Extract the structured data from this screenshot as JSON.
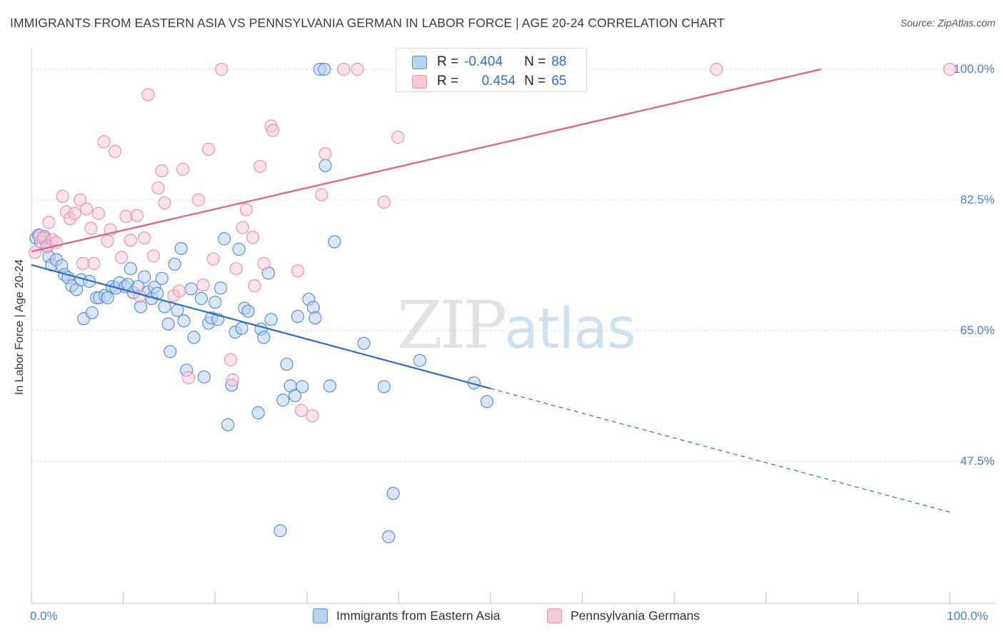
{
  "title": "IMMIGRANTS FROM EASTERN ASIA VS PENNSYLVANIA GERMAN IN LABOR FORCE | AGE 20-24 CORRELATION CHART",
  "source": "Source: ZipAtlas.com",
  "watermark": {
    "zip": "ZIP",
    "atlas": "atlas"
  },
  "legend": {
    "r_label": "R =",
    "n_label": "N =",
    "rows": [
      {
        "r": "-0.404",
        "n": "88"
      },
      {
        "r": "0.454",
        "n": "65"
      }
    ]
  },
  "bottom_legend": [
    "Immigrants from Eastern Asia",
    "Pennsylvania Germans"
  ],
  "colors": {
    "blue": "#2f6ccf",
    "blue_fill": "#b9d2f2",
    "blue_stroke": "#5b8fd8",
    "pink": "#e0648c",
    "pink_fill": "#f8c7d6",
    "pink_stroke": "#ea93b0",
    "grid": "#d7d7d7",
    "tick_text": "#4a7fd0"
  },
  "chart_data": {
    "type": "scatter",
    "title": "IMMIGRANTS FROM EASTERN ASIA VS PENNSYLVANIA GERMAN IN LABOR FORCE | AGE 20-24 CORRELATION CHART",
    "xlabel": "",
    "ylabel": "In Labor Force | Age 20-24",
    "xlim": [
      0,
      100
    ],
    "ylim": [
      31.0,
      101.5
    ],
    "x_tick_labels": [
      "0.0%",
      "100.0%"
    ],
    "y_ticks": [
      47.5,
      65.0,
      82.5,
      100.0
    ],
    "y_tick_labels": [
      "47.5%",
      "65.0%",
      "82.5%",
      "100.0%"
    ],
    "grid": true,
    "legend_position": "top-center",
    "series": [
      {
        "name": "Immigrants from Eastern Asia",
        "r": -0.404,
        "n": 88,
        "trend": {
          "x0": 0,
          "y0": 73.8,
          "x1": 100,
          "y1": 40.7,
          "solid_until_x": 50
        },
        "points": [
          [
            0.5,
            77.4
          ],
          [
            0.8,
            77.8
          ],
          [
            1.0,
            76.9
          ],
          [
            1.4,
            77.6
          ],
          [
            1.7,
            76.4
          ],
          [
            1.9,
            74.9
          ],
          [
            2.2,
            73.8
          ],
          [
            2.7,
            74.5
          ],
          [
            3.3,
            73.7
          ],
          [
            3.6,
            72.5
          ],
          [
            4.0,
            72.1
          ],
          [
            4.4,
            71.0
          ],
          [
            4.9,
            70.5
          ],
          [
            5.4,
            71.8
          ],
          [
            5.7,
            66.6
          ],
          [
            6.3,
            71.6
          ],
          [
            6.6,
            67.4
          ],
          [
            7.1,
            69.4
          ],
          [
            7.4,
            69.4
          ],
          [
            8.0,
            69.7
          ],
          [
            8.3,
            69.4
          ],
          [
            8.8,
            70.9
          ],
          [
            9.2,
            70.7
          ],
          [
            9.6,
            71.4
          ],
          [
            10.2,
            70.9
          ],
          [
            10.5,
            71.2
          ],
          [
            10.8,
            73.3
          ],
          [
            11.1,
            70.1
          ],
          [
            11.6,
            70.9
          ],
          [
            11.9,
            68.2
          ],
          [
            12.3,
            72.2
          ],
          [
            12.7,
            70.2
          ],
          [
            13.1,
            69.3
          ],
          [
            13.4,
            70.8
          ],
          [
            13.7,
            70.0
          ],
          [
            14.2,
            72.0
          ],
          [
            14.5,
            68.2
          ],
          [
            14.9,
            65.9
          ],
          [
            15.1,
            62.2
          ],
          [
            15.6,
            73.9
          ],
          [
            15.9,
            67.7
          ],
          [
            16.3,
            76.0
          ],
          [
            16.6,
            66.3
          ],
          [
            16.9,
            59.7
          ],
          [
            17.4,
            70.6
          ],
          [
            17.7,
            64.1
          ],
          [
            18.5,
            69.3
          ],
          [
            18.8,
            58.8
          ],
          [
            19.3,
            66.0
          ],
          [
            19.6,
            66.7
          ],
          [
            20.0,
            68.8
          ],
          [
            20.3,
            66.5
          ],
          [
            20.6,
            70.7
          ],
          [
            21.0,
            77.3
          ],
          [
            21.4,
            52.4
          ],
          [
            21.8,
            57.7
          ],
          [
            22.2,
            64.8
          ],
          [
            22.6,
            75.9
          ],
          [
            22.9,
            65.3
          ],
          [
            23.2,
            68.0
          ],
          [
            23.6,
            67.6
          ],
          [
            24.7,
            54.0
          ],
          [
            25.0,
            65.2
          ],
          [
            25.3,
            64.1
          ],
          [
            25.8,
            72.7
          ],
          [
            26.1,
            66.5
          ],
          [
            27.1,
            38.2
          ],
          [
            27.4,
            55.7
          ],
          [
            27.8,
            60.5
          ],
          [
            28.2,
            57.6
          ],
          [
            28.7,
            56.3
          ],
          [
            29.5,
            57.5
          ],
          [
            29.0,
            66.9
          ],
          [
            30.2,
            69.2
          ],
          [
            30.7,
            68.1
          ],
          [
            30.9,
            66.7
          ],
          [
            31.4,
            100.0
          ],
          [
            31.9,
            100.0
          ],
          [
            32.0,
            87.1
          ],
          [
            32.5,
            57.6
          ],
          [
            33.0,
            76.9
          ],
          [
            36.2,
            63.3
          ],
          [
            38.4,
            57.5
          ],
          [
            38.9,
            37.4
          ],
          [
            39.4,
            43.2
          ],
          [
            42.3,
            61.0
          ],
          [
            48.2,
            58.0
          ],
          [
            49.6,
            55.5
          ]
        ]
      },
      {
        "name": "Pennsylvania Germans",
        "r": 0.454,
        "n": 65,
        "trend": {
          "x0": 0,
          "y0": 75.6,
          "x1": 86,
          "y1": 100.0
        },
        "points": [
          [
            0.4,
            75.5
          ],
          [
            0.9,
            77.7
          ],
          [
            1.3,
            77.4
          ],
          [
            1.7,
            76.2
          ],
          [
            1.9,
            79.5
          ],
          [
            2.3,
            77.2
          ],
          [
            2.7,
            76.8
          ],
          [
            3.4,
            83.0
          ],
          [
            3.8,
            80.9
          ],
          [
            4.2,
            80.0
          ],
          [
            4.7,
            80.7
          ],
          [
            5.3,
            82.5
          ],
          [
            5.6,
            74.0
          ],
          [
            6.0,
            81.3
          ],
          [
            6.5,
            78.7
          ],
          [
            6.8,
            74.0
          ],
          [
            7.3,
            80.7
          ],
          [
            7.9,
            90.3
          ],
          [
            8.3,
            77.0
          ],
          [
            8.6,
            78.5
          ],
          [
            9.1,
            89.0
          ],
          [
            9.8,
            74.8
          ],
          [
            10.3,
            80.3
          ],
          [
            10.8,
            77.1
          ],
          [
            11.5,
            80.4
          ],
          [
            11.8,
            69.6
          ],
          [
            12.3,
            77.4
          ],
          [
            12.7,
            96.6
          ],
          [
            13.3,
            75.0
          ],
          [
            13.8,
            84.1
          ],
          [
            14.2,
            86.4
          ],
          [
            14.5,
            82.1
          ],
          [
            15.5,
            69.7
          ],
          [
            16.1,
            70.3
          ],
          [
            16.5,
            86.6
          ],
          [
            17.1,
            58.7
          ],
          [
            18.2,
            82.5
          ],
          [
            18.7,
            71.1
          ],
          [
            19.3,
            89.3
          ],
          [
            19.8,
            74.6
          ],
          [
            20.7,
            100.0
          ],
          [
            21.7,
            61.1
          ],
          [
            21.9,
            58.4
          ],
          [
            22.3,
            73.3
          ],
          [
            23.0,
            78.8
          ],
          [
            23.4,
            81.2
          ],
          [
            24.1,
            77.5
          ],
          [
            24.3,
            71.0
          ],
          [
            24.9,
            87.0
          ],
          [
            25.3,
            74.0
          ],
          [
            26.1,
            92.4
          ],
          [
            26.3,
            91.8
          ],
          [
            29.0,
            73.0
          ],
          [
            29.4,
            54.3
          ],
          [
            30.6,
            53.6
          ],
          [
            31.6,
            83.2
          ],
          [
            32.0,
            88.7
          ],
          [
            34.0,
            100.0
          ],
          [
            35.5,
            100.0
          ],
          [
            38.4,
            82.2
          ],
          [
            39.9,
            90.9
          ],
          [
            48.4,
            100.0
          ],
          [
            58.5,
            100.0
          ],
          [
            74.6,
            100.0
          ],
          [
            100.0,
            100.0
          ]
        ]
      }
    ]
  }
}
